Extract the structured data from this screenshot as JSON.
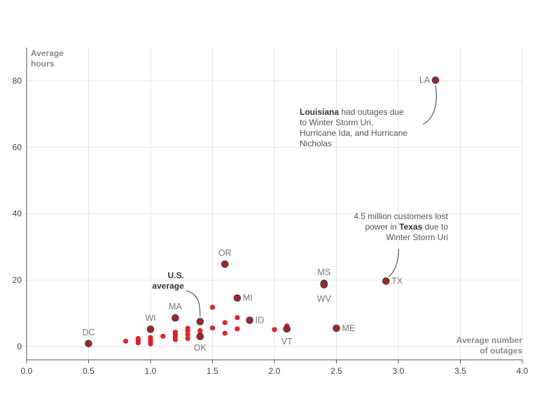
{
  "chart_data": {
    "type": "scatter",
    "xlabel": [
      "Average number",
      "of outages"
    ],
    "ylabel": [
      "Average",
      "hours"
    ],
    "xlim": [
      0,
      4
    ],
    "ylim": [
      -4,
      90
    ],
    "x_ticks": [
      "0.0",
      "0.5",
      "1.0",
      "1.5",
      "2.0",
      "2.5",
      "3.0",
      "3.5",
      "4.0"
    ],
    "y_ticks": [
      "0",
      "20",
      "40",
      "60",
      "80"
    ],
    "grid": true,
    "colors": {
      "point": "#e32127",
      "highlight": "#b01e24",
      "outline": "#444444",
      "grid": "#e6e6e6",
      "axis": "#555555"
    },
    "labeled_points": [
      {
        "label": "LA",
        "x": 3.3,
        "y": 80.2
      },
      {
        "label": "TX",
        "x": 2.9,
        "y": 19.7
      },
      {
        "label": "MS",
        "x": 2.4,
        "y": 19.0
      },
      {
        "label": "WV",
        "x": 2.4,
        "y": 18.6
      },
      {
        "label": "OR",
        "x": 1.6,
        "y": 24.8
      },
      {
        "label": "MI",
        "x": 1.7,
        "y": 14.6
      },
      {
        "label": "ID",
        "x": 1.8,
        "y": 7.9
      },
      {
        "label": "ME",
        "x": 2.5,
        "y": 5.5
      },
      {
        "label": "VT",
        "x": 2.1,
        "y": 5.3
      },
      {
        "label": "MA",
        "x": 1.2,
        "y": 8.6
      },
      {
        "label": "WI",
        "x": 1.0,
        "y": 5.2
      },
      {
        "label": "DC",
        "x": 0.5,
        "y": 0.9
      },
      {
        "label": "OK",
        "x": 1.4,
        "y": 3.0
      }
    ],
    "us_average": {
      "label": [
        "U.S.",
        "average"
      ],
      "x": 1.4,
      "y": 7.5
    },
    "other_points": [
      {
        "x": 0.8,
        "y": 1.6
      },
      {
        "x": 0.9,
        "y": 1.1
      },
      {
        "x": 0.9,
        "y": 1.7
      },
      {
        "x": 0.9,
        "y": 2.4
      },
      {
        "x": 1.0,
        "y": 0.8
      },
      {
        "x": 1.0,
        "y": 1.4
      },
      {
        "x": 1.0,
        "y": 2.1
      },
      {
        "x": 1.0,
        "y": 2.7
      },
      {
        "x": 1.1,
        "y": 3.1
      },
      {
        "x": 1.2,
        "y": 2.1
      },
      {
        "x": 1.2,
        "y": 2.8
      },
      {
        "x": 1.2,
        "y": 3.6
      },
      {
        "x": 1.2,
        "y": 4.3
      },
      {
        "x": 1.3,
        "y": 2.4
      },
      {
        "x": 1.3,
        "y": 3.6
      },
      {
        "x": 1.3,
        "y": 4.7
      },
      {
        "x": 1.3,
        "y": 5.5
      },
      {
        "x": 1.4,
        "y": 3.8
      },
      {
        "x": 1.4,
        "y": 4.8
      },
      {
        "x": 1.5,
        "y": 5.6
      },
      {
        "x": 1.5,
        "y": 11.8
      },
      {
        "x": 1.6,
        "y": 4.0
      },
      {
        "x": 1.6,
        "y": 7.2
      },
      {
        "x": 1.7,
        "y": 5.3
      },
      {
        "x": 1.7,
        "y": 8.7
      },
      {
        "x": 2.0,
        "y": 5.1
      },
      {
        "x": 2.1,
        "y": 6.2
      }
    ],
    "annotations": [
      {
        "target": "LA",
        "lines": [
          [
            {
              "t": "Louisiana",
              "b": true
            },
            {
              "t": " had outages due",
              "b": false
            }
          ],
          [
            {
              "t": "to Winter Storm Uri,",
              "b": false
            }
          ],
          [
            {
              "t": "Hurricane Ida, and Hurricane",
              "b": false
            }
          ],
          [
            {
              "t": "Nicholas",
              "b": false
            }
          ]
        ]
      },
      {
        "target": "TX",
        "lines": [
          [
            {
              "t": "4.5 million customers lost",
              "b": false
            }
          ],
          [
            {
              "t": "power in ",
              "b": false
            },
            {
              "t": "Texas",
              "b": true
            },
            {
              "t": " due to",
              "b": false
            }
          ],
          [
            {
              "t": "Winter Storm Uri",
              "b": false
            }
          ]
        ]
      }
    ]
  }
}
